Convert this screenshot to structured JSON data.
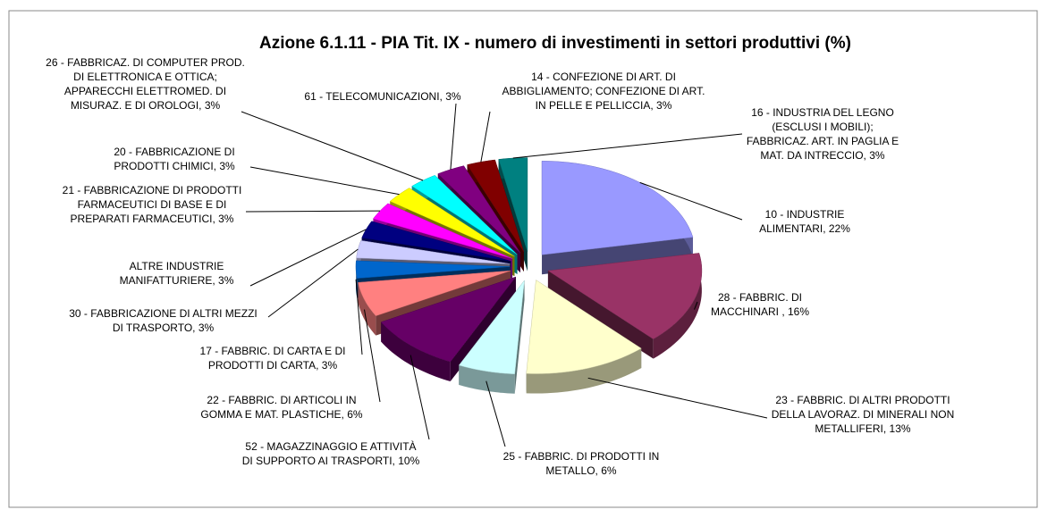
{
  "chart_data": {
    "type": "pie",
    "title": "Azione 6.1.11 - PIA Tit. IX - numero di investimenti in settori produttivi (%)",
    "categories": [
      "10 - INDUSTRIE ALIMENTARI, 22%",
      "28 - FABBRIC. DI MACCHINARI , 16%",
      "23 - FABBRIC. DI ALTRI PRODOTTI DELLA LAVORAZ. DI MINERALI NON METALLIFERI, 13%",
      "25 - FABBRIC. DI PRODOTTI IN METALLO, 6%",
      "52 - MAGAZZINAGGIO E ATTIVITÀ DI SUPPORTO AI TRASPORTI, 10%",
      "22 - FABBRIC. DI ARTICOLI IN GOMMA E MAT. PLASTICHE, 6%",
      "17 - FABBRIC. DI CARTA E DI PRODOTTI DI CARTA, 3%",
      "30 - FABBRICAZIONE DI ALTRI MEZZI DI TRASPORTO, 3%",
      "ALTRE INDUSTRIE MANIFATTURIERE, 3%",
      "21 - FABBRICAZIONE DI PRODOTTI FARMACEUTICI DI BASE E DI PREPARATI FARMACEUTICI, 3%",
      "20 - FABBRICAZIONE DI PRODOTTI CHIMICI, 3%",
      "26 - FABBRICAZ. DI COMPUTER PROD. DI ELETTRONICA E OTTICA; APPARECCHI ELETTROMED. DI MISURAZ. E DI OROLOGI, 3%",
      "61 - TELECOMUNICAZIONI, 3%",
      "14 - CONFEZIONE DI ART. DI ABBIGLIAMENTO; CONFEZIONE DI ART. IN PELLE E PELLICCIA, 3%",
      "16 - INDUSTRIA DEL LEGNO (ESCLUSI I MOBILI); FABBRICAZ. ART. IN PAGLIA E MAT. DA INTRECCIO, 3%"
    ],
    "values": [
      22,
      16,
      13,
      6,
      10,
      6,
      3,
      3,
      3,
      3,
      3,
      3,
      3,
      3,
      3
    ],
    "colors": [
      "#9999ff",
      "#993366",
      "#ffffcc",
      "#ccffff",
      "#660066",
      "#ff8080",
      "#0066cc",
      "#ccccff",
      "#000080",
      "#ff00ff",
      "#ffff00",
      "#00ffff",
      "#800080",
      "#800000",
      "#008080"
    ]
  }
}
